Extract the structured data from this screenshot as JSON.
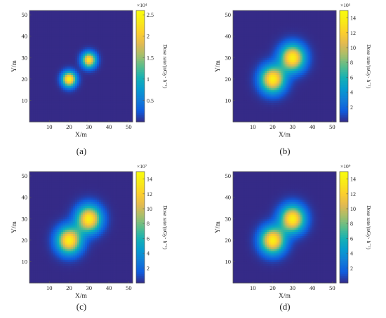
{
  "figure": {
    "panels": [
      {
        "label": "(a)",
        "letter": "a"
      },
      {
        "label": "(b)",
        "letter": "b"
      },
      {
        "label": "(c)",
        "letter": "c"
      },
      {
        "label": "(d)",
        "letter": "d"
      }
    ]
  },
  "chart_data": [
    {
      "type": "heatmap",
      "panel": "(a)",
      "xlabel": "X/m",
      "ylabel": "Y/m",
      "xlim": [
        0,
        52
      ],
      "ylim": [
        0,
        52
      ],
      "xticks": [
        10,
        20,
        30,
        40,
        50
      ],
      "yticks": [
        10,
        20,
        30,
        40,
        50
      ],
      "colorbar": {
        "label": "Dose rate/(nGy· h⁻¹)",
        "exponent": "×10⁴",
        "range": [
          0,
          2.6
        ],
        "ticks": [
          0.5,
          1,
          1.5,
          2,
          2.5
        ],
        "tick_labels": [
          "0.5",
          "1",
          "1.5",
          "2",
          "2.5"
        ]
      },
      "sources": [
        {
          "x": 20,
          "y": 20,
          "peak": 2.5
        },
        {
          "x": 30,
          "y": 29,
          "peak": 2.3
        }
      ],
      "spread_m": 2.4,
      "colormap": "parula",
      "grid": false
    },
    {
      "type": "heatmap",
      "panel": "(b)",
      "xlabel": "X/m",
      "ylabel": "Y/m",
      "xlim": [
        0,
        52
      ],
      "ylim": [
        0,
        52
      ],
      "xticks": [
        10,
        20,
        30,
        40,
        50
      ],
      "yticks": [
        10,
        20,
        30,
        40,
        50
      ],
      "colorbar": {
        "label": "Dose rate/(nGy· h⁻¹)",
        "exponent": "×10⁵",
        "range": [
          0,
          15
        ],
        "ticks": [
          2,
          4,
          6,
          8,
          10,
          12,
          14
        ],
        "tick_labels": [
          "2",
          "4",
          "6",
          "8",
          "10",
          "12",
          "14"
        ]
      },
      "sources": [
        {
          "x": 20,
          "y": 20,
          "peak": 14
        },
        {
          "x": 30,
          "y": 30,
          "peak": 14
        }
      ],
      "spread_m": 4.2,
      "colormap": "parula",
      "grid": false
    },
    {
      "type": "heatmap",
      "panel": "(c)",
      "xlabel": "X/m",
      "ylabel": "Y/m",
      "xlim": [
        0,
        52
      ],
      "ylim": [
        0,
        52
      ],
      "xticks": [
        10,
        20,
        30,
        40,
        50
      ],
      "yticks": [
        10,
        20,
        30,
        40,
        50
      ],
      "colorbar": {
        "label": "Dose rate/(nGy· h⁻¹)",
        "exponent": "×10⁷",
        "range": [
          0,
          15
        ],
        "ticks": [
          2,
          4,
          6,
          8,
          10,
          12,
          14
        ],
        "tick_labels": [
          "2",
          "4",
          "6",
          "8",
          "10",
          "12",
          "14"
        ]
      },
      "sources": [
        {
          "x": 20,
          "y": 20,
          "peak": 14
        },
        {
          "x": 30,
          "y": 30,
          "peak": 14
        }
      ],
      "spread_m": 4.2,
      "colormap": "parula",
      "grid": false
    },
    {
      "type": "heatmap",
      "panel": "(d)",
      "xlabel": "X/m",
      "ylabel": "Y/m",
      "xlim": [
        0,
        52
      ],
      "ylim": [
        0,
        52
      ],
      "xticks": [
        10,
        20,
        30,
        40,
        50
      ],
      "yticks": [
        10,
        20,
        30,
        40,
        50
      ],
      "colorbar": {
        "label": "Dose rate/(nGy· h⁻¹)",
        "exponent": "×10⁹",
        "range": [
          0,
          15
        ],
        "ticks": [
          2,
          4,
          6,
          8,
          10,
          12,
          14
        ],
        "tick_labels": [
          "2",
          "4",
          "6",
          "8",
          "10",
          "12",
          "14"
        ]
      },
      "sources": [
        {
          "x": 20,
          "y": 20,
          "peak": 14
        },
        {
          "x": 30,
          "y": 30,
          "peak": 14
        }
      ],
      "spread_m": 4.2,
      "colormap": "parula",
      "grid": false
    }
  ]
}
